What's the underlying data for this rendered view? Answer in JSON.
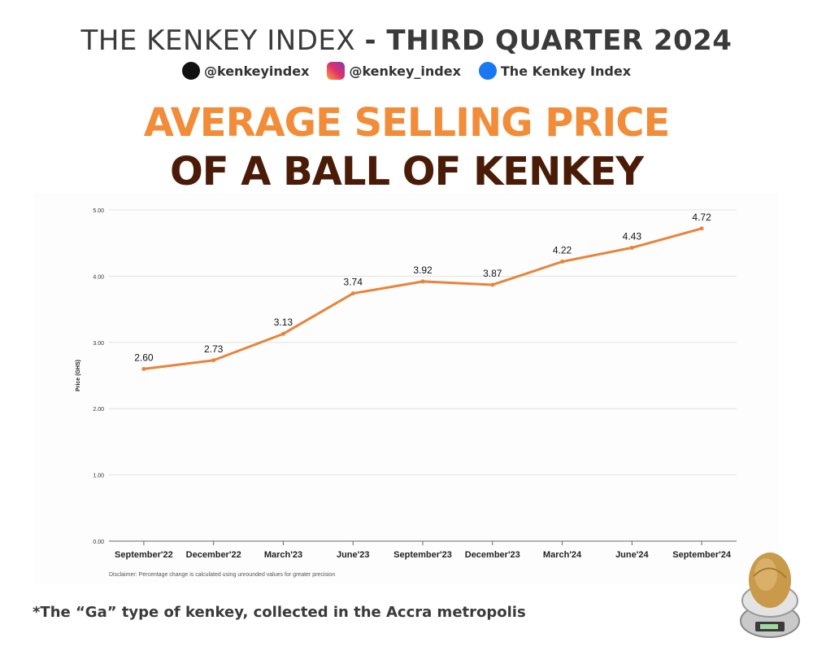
{
  "header": {
    "title_light": "THE KENKEY INDEX ",
    "title_bold": "- THIRD QUARTER 2024"
  },
  "socials": [
    {
      "icon": "x-icon",
      "handle": "@kenkeyindex"
    },
    {
      "icon": "instagram-icon",
      "handle": "@kenkey_index"
    },
    {
      "icon": "facebook-icon",
      "handle": "The Kenkey Index"
    }
  ],
  "headline": {
    "line1": "AVERAGE SELLING PRICE",
    "line2": "OF A BALL OF KENKEY"
  },
  "chart_data": {
    "type": "line",
    "categories": [
      "September'22",
      "December'22",
      "March'23",
      "June'23",
      "September'23",
      "December'23",
      "March'24",
      "June'24",
      "September'24"
    ],
    "values": [
      2.6,
      2.73,
      3.13,
      3.74,
      3.92,
      3.87,
      4.22,
      4.43,
      4.72
    ],
    "value_labels": [
      "2.60",
      "2.73",
      "3.13",
      "3.74",
      "3.92",
      "3.87",
      "4.22",
      "4.43",
      "4.72"
    ],
    "ylabel": "Price (GHS)",
    "ylim": [
      0,
      5
    ],
    "yticks": [
      "0.00",
      "1.00",
      "2.00",
      "3.00",
      "4.00",
      "5.00"
    ],
    "grid": true,
    "line_color": "#e8843a",
    "disclaimer": "Disclaimer: Percentage change is calculated using unrounded values for greater precision"
  },
  "footnote": "*The “Ga” type of kenkey, collected in the Accra metropolis",
  "colors": {
    "orange": "#f28c38",
    "brown": "#4a1c07"
  }
}
